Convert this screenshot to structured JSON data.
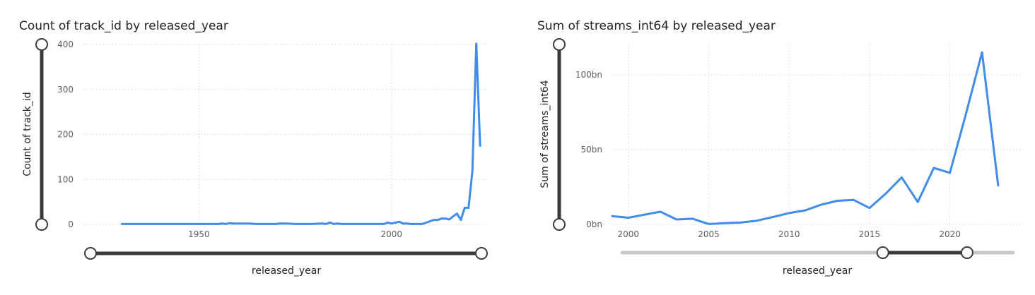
{
  "chart_data": [
    {
      "type": "line",
      "title": "Count of track_id by released_year",
      "xlabel": "released_year",
      "ylabel": "Count of track_id",
      "xlim": [
        1920,
        2025
      ],
      "ylim": [
        0,
        400
      ],
      "xticks": [
        "1950",
        "2000"
      ],
      "yticks": [
        "0",
        "100",
        "200",
        "300",
        "400"
      ],
      "grid": true,
      "series": [
        {
          "x": [
            1930,
            1942,
            1946,
            1950,
            1952,
            1955,
            1956,
            1957,
            1958,
            1959,
            1963,
            1965,
            1968,
            1970,
            1971,
            1973,
            1975,
            1979,
            1982,
            1983,
            1984,
            1985,
            1986,
            1987,
            1991,
            1992,
            1995,
            1996,
            1997,
            1998,
            1999,
            2000,
            2002,
            2003,
            2004,
            2005,
            2007,
            2008,
            2010,
            2011,
            2012,
            2013,
            2014,
            2015,
            2016,
            2017,
            2018,
            2019,
            2020,
            2021,
            2022,
            2023
          ],
          "y": [
            1,
            1,
            1,
            1,
            1,
            1,
            2,
            1,
            3,
            2,
            2,
            1,
            1,
            1,
            2,
            2,
            1,
            1,
            2,
            1,
            4,
            1,
            2,
            1,
            1,
            1,
            1,
            1,
            1,
            1,
            4,
            2,
            6,
            2,
            2,
            1,
            1,
            1,
            7,
            10,
            10,
            13,
            13,
            11,
            18,
            24,
            10,
            37,
            37,
            119,
            402,
            175
          ]
        }
      ],
      "slider": {
        "start": 1930,
        "end": 2023
      }
    },
    {
      "type": "line",
      "title": "Sum of streams_int64 by released_year",
      "xlabel": "released_year",
      "ylabel": "Sum of streams_int64",
      "xlim": [
        1999,
        2024.5
      ],
      "ylim": [
        0,
        100
      ],
      "unit": "bn",
      "xticks": [
        "2000",
        "2005",
        "2010",
        "2015",
        "2020"
      ],
      "yticks": [
        "0bn",
        "50bn",
        "100bn"
      ],
      "grid": true,
      "series": [
        {
          "x": [
            1999,
            2000,
            2001,
            2002,
            2003,
            2004,
            2005,
            2006,
            2007,
            2008,
            2009,
            2010,
            2011,
            2012,
            2013,
            2014,
            2015,
            2016,
            2017,
            2018,
            2019,
            2020,
            2021,
            2022,
            2023
          ],
          "y": [
            5.5,
            4.5,
            6.5,
            8.5,
            3.3,
            3.8,
            0.3,
            0.8,
            1.3,
            2.5,
            5.0,
            7.6,
            9.4,
            13.2,
            15.8,
            16.4,
            11.0,
            20.5,
            31.4,
            15.0,
            37.8,
            34.5,
            74.0,
            115.0,
            26.0
          ]
        }
      ],
      "slider": {
        "start": 2016,
        "end": 2021.5
      }
    }
  ]
}
